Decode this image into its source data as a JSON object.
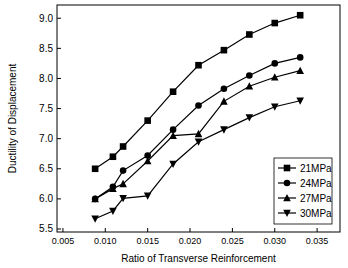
{
  "chart_data": {
    "type": "line",
    "x_label": "Ratio of Transverse Reinforcement",
    "y_label": "Ductility of Displacement",
    "xlim": [
      0.0043,
      0.0377
    ],
    "ylim": [
      5.45,
      9.22
    ],
    "xticks": [
      0.005,
      {
        "value": 0.01,
        "label": "0.010"
      },
      0.015,
      {
        "value": 0.02,
        "label": "0.020"
      },
      0.025,
      {
        "value": 0.03,
        "label": "0.030"
      },
      0.035
    ],
    "yticks": [
      5.5,
      {
        "value": 6,
        "label": "6.0"
      },
      6.5,
      {
        "value": 7,
        "label": "7.0"
      },
      7.5,
      {
        "value": 8,
        "label": "8.0"
      },
      8.5,
      {
        "value": 9,
        "label": "9.0"
      }
    ],
    "legend": "lower-right",
    "x": [
      0.0088,
      0.0109,
      0.0121,
      0.015,
      0.018,
      0.021,
      0.024,
      0.027,
      0.03,
      0.033
    ],
    "series": [
      {
        "name": "21MPa",
        "color": "#000000",
        "marker": "square",
        "values": [
          6.5,
          6.7,
          6.87,
          7.3,
          7.78,
          8.22,
          8.47,
          8.73,
          8.92,
          9.05
        ]
      },
      {
        "name": "24MPa",
        "color": "#000000",
        "marker": "circle",
        "values": [
          6.0,
          6.2,
          6.47,
          6.72,
          7.15,
          7.55,
          7.83,
          8.05,
          8.25,
          8.35
        ]
      },
      {
        "name": "27MPa",
        "color": "#000000",
        "marker": "triangle-up",
        "values": [
          6.0,
          6.17,
          6.25,
          6.63,
          7.05,
          7.08,
          7.62,
          7.87,
          8.02,
          8.13
        ]
      },
      {
        "name": "30MPa",
        "color": "#000000",
        "marker": "triangle-down",
        "values": [
          5.67,
          5.8,
          6.01,
          6.05,
          6.58,
          6.95,
          7.15,
          7.35,
          7.53,
          7.63
        ]
      }
    ]
  }
}
